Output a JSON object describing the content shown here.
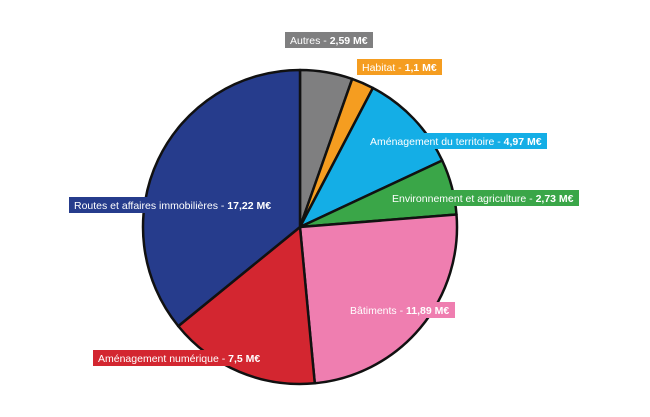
{
  "chart_data": {
    "type": "pie",
    "title": "",
    "unit": "M€",
    "slices": [
      {
        "label": "Autres",
        "value": 2.59,
        "value_text": "2,59 M€",
        "color": "#7f7f80"
      },
      {
        "label": "Habitat",
        "value": 1.1,
        "value_text": "1,1 M€",
        "color": "#f59d20"
      },
      {
        "label": "Aménagement du territoire",
        "value": 4.97,
        "value_text": "4,97 M€",
        "color": "#14aee6"
      },
      {
        "label": "Environnement et agriculture",
        "value": 2.73,
        "value_text": "2,73 M€",
        "color": "#3aa648"
      },
      {
        "label": "Bâtiments",
        "value": 11.89,
        "value_text": "11,89 M€",
        "color": "#ef7eb0"
      },
      {
        "label": "Aménagement numérique",
        "value": 7.5,
        "value_text": "7,5 M€",
        "color": "#d32630"
      },
      {
        "label": "Routes et affaires immobilières",
        "value": 17.22,
        "value_text": "17,22 M€",
        "color": "#263c8c"
      }
    ],
    "start": "12 o'clock",
    "direction": "clockwise",
    "slice_border_color": "#111111",
    "label_style": "colored boxes with white text, value in bold"
  }
}
